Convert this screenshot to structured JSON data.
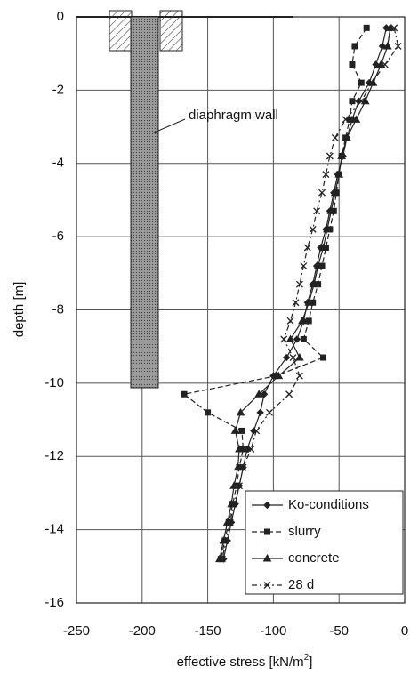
{
  "chart_data": {
    "type": "line",
    "xlabel": "effective stress  [kN/m",
    "xlabel_sup": "2",
    "xlabel_end": "]",
    "ylabel": "depth [m]",
    "annotation": "diaphragm wall",
    "xlim": [
      -250,
      0
    ],
    "ylim": [
      -16,
      0
    ],
    "xticks": [
      -250,
      -200,
      -150,
      -100,
      -50,
      0
    ],
    "yticks": [
      -16,
      -14,
      -12,
      -10,
      -8,
      -6,
      -4,
      -2,
      0
    ],
    "grid": true,
    "legend": "lower right",
    "series": [
      {
        "name": "Ko-conditions",
        "color": "#222222",
        "marker": "diamond",
        "dash": "none",
        "x": [
          -14,
          -17,
          -22,
          -27,
          -35,
          -40,
          -44,
          -47,
          -51,
          -54,
          -57,
          -60,
          -64,
          -67,
          -70,
          -74,
          -77,
          -82,
          -90,
          -100,
          -107,
          -110,
          -115,
          -120,
          -123,
          -126,
          -129,
          -132,
          -135,
          -138
        ],
        "y": [
          -0.3,
          -0.8,
          -1.3,
          -1.8,
          -2.3,
          -2.8,
          -3.3,
          -3.8,
          -4.3,
          -4.8,
          -5.3,
          -5.8,
          -6.3,
          -6.8,
          -7.3,
          -7.8,
          -8.3,
          -8.8,
          -9.3,
          -9.8,
          -10.3,
          -10.8,
          -11.3,
          -11.8,
          -12.3,
          -12.8,
          -13.3,
          -13.8,
          -14.3,
          -14.8
        ]
      },
      {
        "name": "slurry",
        "color": "#222222",
        "marker": "square",
        "dash": "6,3",
        "x": [
          -29,
          -38,
          -40,
          -33,
          -40,
          -42,
          -45,
          -48,
          -50,
          -52,
          -54,
          -57,
          -60,
          -63,
          -66,
          -70,
          -73,
          -77,
          -62,
          -98,
          -168,
          -150,
          -124,
          -123,
          -126,
          -128,
          -131,
          -134,
          -137,
          -140
        ],
        "y": [
          -0.3,
          -0.8,
          -1.3,
          -1.8,
          -2.3,
          -2.8,
          -3.3,
          -3.8,
          -4.3,
          -4.8,
          -5.3,
          -5.8,
          -6.3,
          -6.8,
          -7.3,
          -7.8,
          -8.3,
          -8.8,
          -9.3,
          -9.8,
          -10.3,
          -10.8,
          -11.3,
          -11.8,
          -12.3,
          -12.8,
          -13.3,
          -13.8,
          -14.3,
          -14.8
        ]
      },
      {
        "name": "concrete",
        "color": "#222222",
        "marker": "triangle",
        "dash": "none",
        "x": [
          -11,
          -13,
          -18,
          -24,
          -30,
          -37,
          -44,
          -48,
          -50,
          -53,
          -56,
          -59,
          -62,
          -66,
          -69,
          -73,
          -78,
          -87,
          -80,
          -96,
          -111,
          -125,
          -129,
          -126,
          -127,
          -130,
          -132,
          -135,
          -138,
          -141
        ],
        "y": [
          -0.3,
          -0.8,
          -1.3,
          -1.8,
          -2.3,
          -2.8,
          -3.3,
          -3.8,
          -4.3,
          -4.8,
          -5.3,
          -5.8,
          -6.3,
          -6.8,
          -7.3,
          -7.8,
          -8.3,
          -8.8,
          -9.3,
          -9.8,
          -10.3,
          -10.8,
          -11.3,
          -11.8,
          -12.3,
          -12.8,
          -13.3,
          -13.8,
          -14.3,
          -14.8
        ]
      },
      {
        "name": "28 d",
        "color": "#222222",
        "marker": "x",
        "dash": "6,3,2,3",
        "x": [
          -8,
          -5,
          -15,
          -25,
          -33,
          -45,
          -53,
          -57,
          -60,
          -63,
          -67,
          -70,
          -74,
          -77,
          -80,
          -83,
          -87,
          -92,
          -85,
          -80,
          -88,
          -103,
          -113,
          -117,
          -123,
          -126,
          -130,
          -133,
          -136,
          -139
        ],
        "y": [
          -0.3,
          -0.8,
          -1.3,
          -1.8,
          -2.3,
          -2.8,
          -3.3,
          -3.8,
          -4.3,
          -4.8,
          -5.3,
          -5.8,
          -6.3,
          -6.8,
          -7.3,
          -7.8,
          -8.3,
          -8.8,
          -9.3,
          -9.8,
          -10.3,
          -10.8,
          -11.3,
          -11.8,
          -12.3,
          -12.8,
          -13.3,
          -13.8,
          -14.3,
          -14.8
        ]
      }
    ]
  }
}
